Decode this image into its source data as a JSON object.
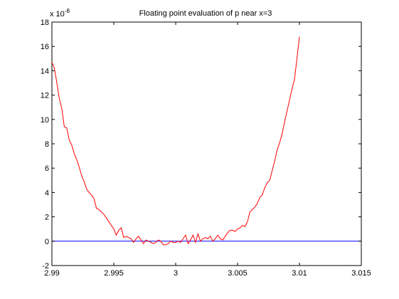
{
  "chart_data": {
    "type": "line",
    "title": "Floating point evaluation of p near x=3",
    "xlabel": "",
    "ylabel": "",
    "scale_label": "x 10",
    "scale_exponent": "-8",
    "xlim": [
      2.99,
      3.015
    ],
    "ylim": [
      -2,
      18
    ],
    "x_ticks": [
      2.99,
      2.995,
      3.0,
      3.005,
      3.01,
      3.015
    ],
    "x_tick_labels": [
      "2.99",
      "2.995",
      "3",
      "3.005",
      "3.01",
      "3.015"
    ],
    "y_ticks": [
      -2,
      0,
      2,
      4,
      6,
      8,
      10,
      12,
      14,
      16,
      18
    ],
    "y_tick_labels": [
      "-2",
      "0",
      "2",
      "4",
      "6",
      "8",
      "10",
      "12",
      "14",
      "16",
      "18"
    ],
    "grid": false,
    "colors": {
      "curve": "#ff0000",
      "baseline": "#0000ff",
      "axes": "#000000"
    },
    "series": [
      {
        "color": "#ff0000",
        "x": [
          2.99,
          2.9902,
          2.9904,
          2.9906,
          2.9908,
          2.991,
          2.9912,
          2.9914,
          2.9916,
          2.9918,
          2.992,
          2.9922,
          2.9924,
          2.9926,
          2.9928,
          2.993,
          2.9932,
          2.9934,
          2.9936,
          2.9938,
          2.994,
          2.9942,
          2.9944,
          2.9946,
          2.9948,
          2.995,
          2.9952,
          2.9954,
          2.9956,
          2.9958,
          2.996,
          2.9962,
          2.9964,
          2.9966,
          2.9968,
          2.997,
          2.9972,
          2.9974,
          2.9976,
          2.9978,
          2.998,
          2.9982,
          2.9984,
          2.9986,
          2.9988,
          2.999,
          2.9992,
          2.9994,
          2.9996,
          2.9998,
          3.0,
          3.0002,
          3.0004,
          3.0006,
          3.0008,
          3.001,
          3.0012,
          3.0014,
          3.0016,
          3.0018,
          3.002,
          3.0022,
          3.0024,
          3.0026,
          3.0028,
          3.003,
          3.0032,
          3.0034,
          3.0036,
          3.0038,
          3.004,
          3.0042,
          3.0044,
          3.0046,
          3.0048,
          3.005,
          3.0052,
          3.0054,
          3.0056,
          3.0058,
          3.006,
          3.0062,
          3.0064,
          3.0066,
          3.0068,
          3.007,
          3.0072,
          3.0074,
          3.0076,
          3.0078,
          3.008,
          3.0082,
          3.0084,
          3.0086,
          3.0088,
          3.009,
          3.0092,
          3.0094,
          3.0096,
          3.0098,
          3.01
        ],
        "y": [
          14.7,
          14.2,
          13.0,
          11.7,
          10.9,
          9.4,
          9.3,
          8.3,
          7.9,
          7.2,
          6.7,
          6.1,
          5.4,
          4.9,
          4.3,
          4.0,
          3.8,
          3.5,
          2.7,
          2.6,
          2.4,
          2.2,
          1.9,
          1.6,
          1.3,
          1.0,
          0.5,
          0.9,
          1.1,
          0.3,
          0.4,
          0.3,
          0.2,
          -0.1,
          0.2,
          0.4,
          0.1,
          -0.2,
          0.1,
          0.0,
          -0.1,
          -0.2,
          -0.1,
          0.1,
          0.0,
          -0.3,
          -0.3,
          -0.2,
          0.0,
          -0.1,
          -0.1,
          0.0,
          -0.1,
          0.2,
          0.5,
          -0.2,
          0.1,
          0.5,
          -0.1,
          0.6,
          0.0,
          0.2,
          0.3,
          0.2,
          0.4,
          0.0,
          0.2,
          0.5,
          0.2,
          0.1,
          0.4,
          0.7,
          0.9,
          0.9,
          0.8,
          1.0,
          1.1,
          1.3,
          1.2,
          1.6,
          2.4,
          2.6,
          2.8,
          3.1,
          3.6,
          3.8,
          4.4,
          4.8,
          5.0,
          5.8,
          6.6,
          7.5,
          8.1,
          8.8,
          9.8,
          10.7,
          11.6,
          12.5,
          13.3,
          15.0,
          16.8
        ]
      },
      {
        "color": "#0000ff",
        "x": [
          2.99,
          3.015
        ],
        "y": [
          0,
          0
        ]
      }
    ]
  }
}
